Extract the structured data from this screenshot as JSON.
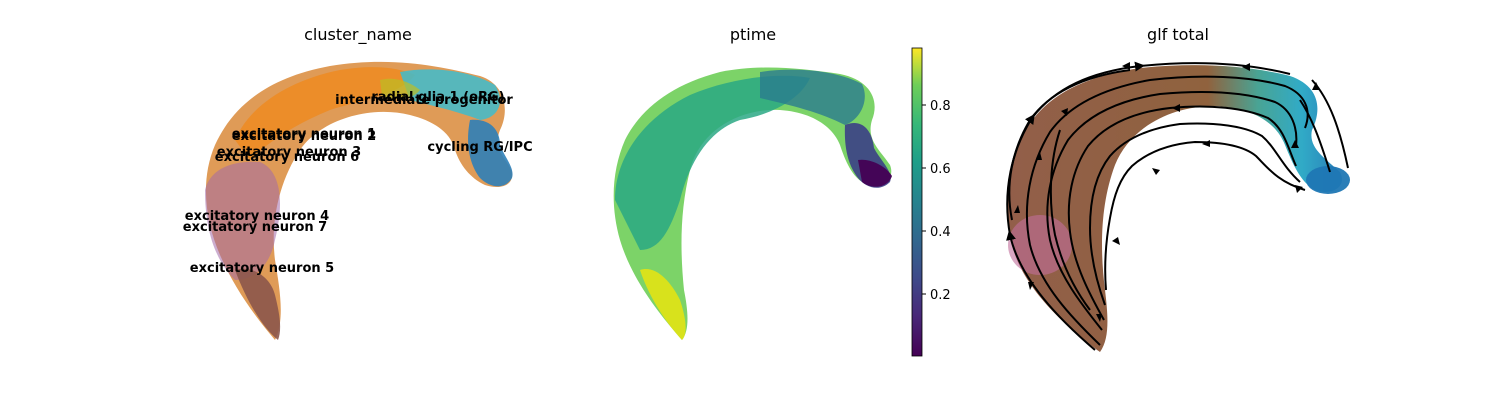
{
  "chart_data": [
    {
      "type": "scatter",
      "title": "cluster_name",
      "xlabel": "",
      "ylabel": "",
      "grid": false,
      "legend": "on data",
      "labels": [
        "radial glia 1 (oRG)",
        "intermediate progenitor",
        "excitatory neuron 1",
        "excitatory neuron 2",
        "excitatory neuron 3",
        "excitatory neuron 6",
        "cycling RG/IPC",
        "excitatory neuron 4",
        "excitatory neuron 7",
        "excitatory neuron 5"
      ],
      "colors": {
        "radial glia 1 (oRG)": "#17becf",
        "intermediate progenitor": "#bcbd22",
        "excitatory neuron 1": "#ff7f0e",
        "excitatory neuron 2": "#d62728",
        "excitatory neuron 3": "#9467bd",
        "excitatory neuron 6": "#e377c2",
        "cycling RG/IPC": "#1f77b4",
        "excitatory neuron 4": "#2ca02c",
        "excitatory neuron 7": "#7f7f7f",
        "excitatory neuron 5": "#8c564b"
      }
    },
    {
      "type": "scatter",
      "title": "ptime",
      "xlabel": "",
      "ylabel": "",
      "grid": false,
      "colormap": "viridis",
      "colorbar_ticks": [
        "0.2",
        "0.4",
        "0.6",
        "0.8"
      ],
      "colorbar_range": [
        0.0,
        0.98
      ]
    },
    {
      "type": "scatter",
      "title": "glf total",
      "xlabel": "",
      "ylabel": "",
      "grid": false,
      "overlay": "streamlines"
    }
  ]
}
